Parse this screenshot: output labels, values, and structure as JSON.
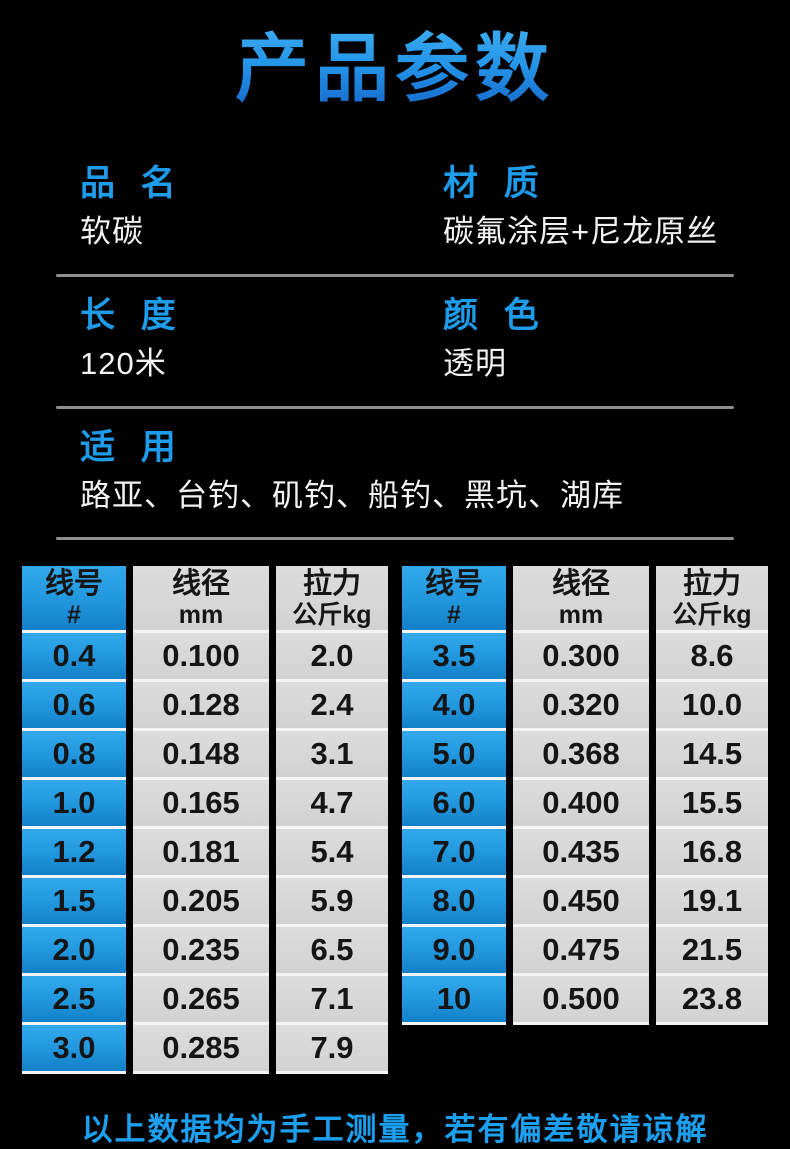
{
  "page": {
    "title": "产品参数",
    "footer": "以上数据均为手工测量，若有偏差敬请谅解"
  },
  "specs": [
    {
      "label": "品 名",
      "value": "软碳"
    },
    {
      "label": "材 质",
      "value": "碳氟涂层+尼龙原丝"
    },
    {
      "label": "长 度",
      "value": "120米"
    },
    {
      "label": "颜 色",
      "value": "透明"
    },
    {
      "label": "适 用",
      "value": "路亚、台钓、矶钓、船钓、黑坑、湖库"
    }
  ],
  "tables": {
    "headers": [
      {
        "zh": "线号",
        "sub": "#"
      },
      {
        "zh": "线径",
        "sub": "mm"
      },
      {
        "zh": "拉力",
        "sub": "公斤kg"
      }
    ],
    "left_rows": [
      [
        "0.4",
        "0.100",
        "2.0"
      ],
      [
        "0.6",
        "0.128",
        "2.4"
      ],
      [
        "0.8",
        "0.148",
        "3.1"
      ],
      [
        "1.0",
        "0.165",
        "4.7"
      ],
      [
        "1.2",
        "0.181",
        "5.4"
      ],
      [
        "1.5",
        "0.205",
        "5.9"
      ],
      [
        "2.0",
        "0.235",
        "6.5"
      ],
      [
        "2.5",
        "0.265",
        "7.1"
      ],
      [
        "3.0",
        "0.285",
        "7.9"
      ]
    ],
    "right_rows": [
      [
        "3.5",
        "0.300",
        "8.6"
      ],
      [
        "4.0",
        "0.320",
        "10.0"
      ],
      [
        "5.0",
        "0.368",
        "14.5"
      ],
      [
        "6.0",
        "0.400",
        "15.5"
      ],
      [
        "7.0",
        "0.435",
        "16.8"
      ],
      [
        "8.0",
        "0.450",
        "19.1"
      ],
      [
        "9.0",
        "0.475",
        "21.5"
      ],
      [
        "10",
        "0.500",
        "23.8"
      ]
    ]
  },
  "colors": {
    "background": "#000000",
    "accent_blue": "#1e9be9",
    "title_gradient_top": "#3dacf1",
    "title_gradient_bottom": "#1668cc",
    "table_blue": "#2196dd",
    "cell_gray": "#d6d6d6",
    "text_white": "#f2f2f2",
    "divider_gray": "#8e8e8e"
  }
}
